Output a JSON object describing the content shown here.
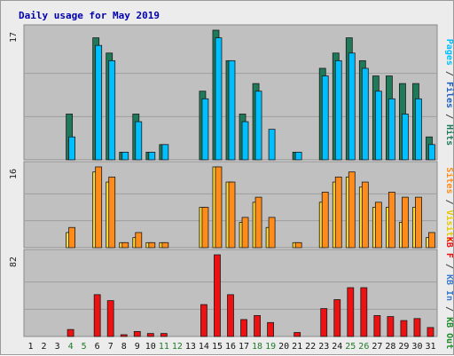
{
  "chart_data": {
    "type": "bar",
    "title": "Daily usage for May 2019",
    "categories": [
      "1",
      "2",
      "3",
      "4",
      "5",
      "6",
      "7",
      "8",
      "9",
      "10",
      "11",
      "12",
      "13",
      "14",
      "15",
      "16",
      "17",
      "18",
      "19",
      "20",
      "21",
      "22",
      "23",
      "24",
      "25",
      "26",
      "27",
      "28",
      "29",
      "30",
      "31"
    ],
    "weekend_days": [
      "4",
      "5",
      "11",
      "12",
      "18",
      "19",
      "25",
      "26"
    ],
    "panels": [
      {
        "id": "hits_files_pages",
        "ymax": 17,
        "ymax_label": "17",
        "side_labels": [
          "Pages",
          "Files",
          "Hits"
        ],
        "series": [
          {
            "name": "Hits",
            "color": "#1f7a5a",
            "values": [
              0,
              0,
              0,
              6,
              0,
              16,
              14,
              1,
              6,
              1,
              2,
              0,
              0,
              9,
              17,
              13,
              6,
              10,
              0,
              0,
              1,
              0,
              12,
              14,
              16,
              13,
              11,
              11,
              10,
              10,
              3
            ]
          },
          {
            "name": "Files",
            "color": "#00bfff",
            "values": [
              0,
              0,
              0,
              3,
              0,
              15,
              13,
              1,
              5,
              1,
              2,
              0,
              0,
              8,
              16,
              13,
              5,
              9,
              4,
              0,
              1,
              0,
              11,
              13,
              14,
              12,
              9,
              8,
              6,
              8,
              2
            ]
          }
        ]
      },
      {
        "id": "visits_sites",
        "ymax": 16,
        "ymax_label": "16",
        "side_labels": [
          "Sites",
          "Visits"
        ],
        "series": [
          {
            "name": "Visits",
            "color": "#ffdd33",
            "values": [
              0,
              0,
              0,
              3,
              0,
              15,
              13,
              1,
              2,
              1,
              1,
              0,
              0,
              8,
              16,
              13,
              5,
              9,
              4,
              0,
              1,
              0,
              9,
              13,
              14,
              12,
              8,
              8,
              5,
              8,
              2
            ]
          },
          {
            "name": "Sites",
            "color": "#ff8c1a",
            "values": [
              0,
              0,
              0,
              4,
              0,
              16,
              14,
              1,
              3,
              1,
              1,
              0,
              0,
              8,
              16,
              13,
              6,
              10,
              6,
              0,
              1,
              0,
              11,
              14,
              15,
              13,
              9,
              11,
              10,
              10,
              3
            ]
          }
        ]
      },
      {
        "id": "kb",
        "ymax": 82,
        "ymax_label": "82",
        "side_labels": [
          "KB F",
          "KB In",
          "KB Out"
        ],
        "series": [
          {
            "name": "KB F",
            "color": "#ee1111",
            "values": [
              0,
              0,
              0,
              7,
              0,
              42,
              36,
              1,
              5,
              3,
              3,
              0,
              0,
              32,
              82,
              42,
              17,
              21,
              14,
              0,
              4,
              0,
              28,
              37,
              49,
              49,
              21,
              20,
              16,
              18,
              9
            ]
          }
        ]
      }
    ]
  }
}
